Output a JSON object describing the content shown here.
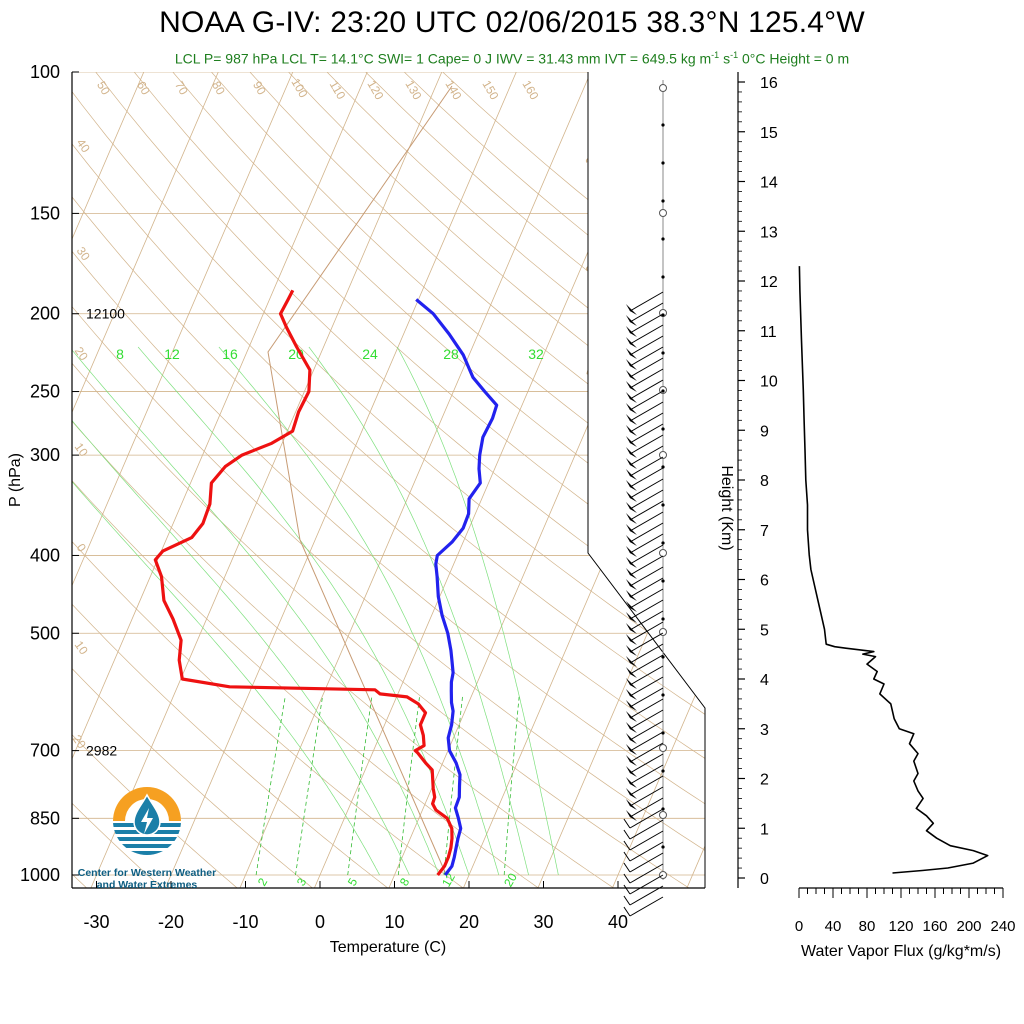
{
  "header": {
    "title": "NOAA G-IV: 23:20 UTC 02/06/2015  38.3°N 125.4°W",
    "subtitle_parts": [
      "LCL P= 987 hPa  LCL T= 14.1°C  SWI= 1  Cape= 0 J  IWV = 31.43 mm  IVT = 649.5 kg m",
      "-1",
      " s",
      "-1",
      "  0°C Height = 0 m"
    ]
  },
  "logo": {
    "line1": "Center for Western Weather",
    "line2": "and Water Extremes",
    "colors": {
      "orange": "#f6a021",
      "blue": "#1b7fa8",
      "dark_blue": "#0e5e82"
    }
  },
  "chart_data": [
    {
      "type": "line",
      "subtype": "skew-T log-P sounding",
      "xlabel": "Temperature (C)",
      "ylabel": "P (hPa)",
      "x_ticks": [
        -30,
        -20,
        -10,
        0,
        10,
        20,
        30,
        40
      ],
      "y_ticks": [
        100,
        150,
        200,
        250,
        300,
        400,
        500,
        700,
        850,
        1000
      ],
      "y_scale": "log",
      "height_annotations": [
        {
          "p": 200,
          "label": "12100"
        },
        {
          "p": 700,
          "label": "2982"
        }
      ],
      "dry_adiabat_labels": [
        "50",
        "60",
        "70",
        "80",
        "90",
        "100",
        "110",
        "120",
        "130",
        "140",
        "150",
        "160",
        "40",
        "30",
        "20",
        "10",
        "0",
        "10",
        "20",
        "30"
      ],
      "mixing_ratio_labels_top": [
        "8",
        "12",
        "16",
        "20",
        "24",
        "28",
        "32"
      ],
      "mixing_ratio_labels_bottom": [
        "2",
        "3",
        "5",
        "8",
        "12",
        "20"
      ],
      "skew_isotherm_labels": [
        "30",
        "20",
        "10",
        "0",
        "10",
        "20",
        "30"
      ],
      "series": [
        {
          "name": "temperature",
          "color": "#2222ee",
          "points": [
            [
              1000,
              16.8
            ],
            [
              975,
              17.2
            ],
            [
              950,
              17.0
            ],
            [
              925,
              16.7
            ],
            [
              900,
              16.4
            ],
            [
              875,
              16.2
            ],
            [
              850,
              15.3
            ],
            [
              825,
              14.3
            ],
            [
              800,
              14.2
            ],
            [
              775,
              13.6
            ],
            [
              750,
              13.0
            ],
            [
              725,
              11.8
            ],
            [
              700,
              10.2
            ],
            [
              675,
              9.3
            ],
            [
              650,
              9.0
            ],
            [
              625,
              8.4
            ],
            [
              610,
              7.7
            ],
            [
              590,
              7.0
            ],
            [
              575,
              6.5
            ],
            [
              560,
              6.2
            ],
            [
              540,
              5.3
            ],
            [
              525,
              4.6
            ],
            [
              500,
              3.2
            ],
            [
              475,
              1.4
            ],
            [
              450,
              -0.2
            ],
            [
              425,
              -1.5
            ],
            [
              410,
              -2.4
            ],
            [
              400,
              -2.7
            ],
            [
              385,
              -1.5
            ],
            [
              370,
              -0.8
            ],
            [
              355,
              -0.9
            ],
            [
              340,
              -1.7
            ],
            [
              325,
              -1.1
            ],
            [
              312,
              -2.1
            ],
            [
              300,
              -2.8
            ],
            [
              285,
              -3.4
            ],
            [
              270,
              -3.2
            ],
            [
              260,
              -3.4
            ],
            [
              250,
              -5.8
            ],
            [
              240,
              -8.2
            ],
            [
              225,
              -10.8
            ],
            [
              212,
              -13.9
            ],
            [
              200,
              -17.2
            ],
            [
              192,
              -20.3
            ]
          ]
        },
        {
          "name": "dewpoint",
          "color": "#ee1111",
          "points": [
            [
              1000,
              15.8
            ],
            [
              975,
              16.2
            ],
            [
              950,
              16.2
            ],
            [
              925,
              16.0
            ],
            [
              900,
              15.6
            ],
            [
              875,
              15.0
            ],
            [
              850,
              13.8
            ],
            [
              830,
              11.8
            ],
            [
              815,
              11.0
            ],
            [
              800,
              10.9
            ],
            [
              780,
              10.2
            ],
            [
              760,
              9.6
            ],
            [
              740,
              9.0
            ],
            [
              725,
              7.7
            ],
            [
              705,
              6.1
            ],
            [
              700,
              5.6
            ],
            [
              690,
              6.5
            ],
            [
              670,
              5.8
            ],
            [
              650,
              4.8
            ],
            [
              628,
              4.8
            ],
            [
              612,
              3.3
            ],
            [
              600,
              1.4
            ],
            [
              595,
              -2.4
            ],
            [
              588,
              -3.3
            ],
            [
              583,
              -23.0
            ],
            [
              570,
              -29.8
            ],
            [
              540,
              -31.3
            ],
            [
              510,
              -32.2
            ],
            [
              480,
              -34.5
            ],
            [
              455,
              -36.8
            ],
            [
              425,
              -38.5
            ],
            [
              405,
              -40.3
            ],
            [
              395,
              -39.8
            ],
            [
              380,
              -36.7
            ],
            [
              365,
              -36.0
            ],
            [
              345,
              -36.2
            ],
            [
              325,
              -37.2
            ],
            [
              310,
              -36.3
            ],
            [
              300,
              -34.7
            ],
            [
              290,
              -31.4
            ],
            [
              280,
              -29.3
            ],
            [
              265,
              -29.6
            ],
            [
              250,
              -29.4
            ],
            [
              235,
              -30.5
            ],
            [
              220,
              -33.6
            ],
            [
              208,
              -36.1
            ],
            [
              200,
              -37.7
            ],
            [
              192,
              -37.5
            ],
            [
              187,
              -37.4
            ]
          ]
        }
      ],
      "wind_profile_note": "wind barbs at right margin of skew-T"
    },
    {
      "type": "line",
      "xlabel": "Water Vapor Flux (g/kg*m/s)",
      "ylabel": "Height (Km)",
      "x_ticks": [
        0,
        40,
        80,
        120,
        160,
        200,
        240
      ],
      "y_ticks": [
        0,
        1,
        2,
        3,
        4,
        5,
        6,
        7,
        8,
        9,
        10,
        11,
        12,
        13,
        14,
        15,
        16
      ],
      "xlim": [
        0,
        240
      ],
      "ylim": [
        -0.2,
        16.2
      ],
      "series": [
        {
          "color": "#000000",
          "points": [
            [
              110,
              0.1
            ],
            [
              145,
              0.15
            ],
            [
              175,
              0.2
            ],
            [
              205,
              0.3
            ],
            [
              222,
              0.45
            ],
            [
              205,
              0.55
            ],
            [
              178,
              0.65
            ],
            [
              162,
              0.8
            ],
            [
              150,
              0.95
            ],
            [
              158,
              1.1
            ],
            [
              150,
              1.25
            ],
            [
              138,
              1.4
            ],
            [
              146,
              1.6
            ],
            [
              140,
              1.75
            ],
            [
              135,
              1.95
            ],
            [
              140,
              2.1
            ],
            [
              135,
              2.35
            ],
            [
              140,
              2.5
            ],
            [
              130,
              2.7
            ],
            [
              135,
              2.9
            ],
            [
              118,
              3.0
            ],
            [
              112,
              3.2
            ],
            [
              108,
              3.5
            ],
            [
              95,
              3.7
            ],
            [
              100,
              3.9
            ],
            [
              88,
              4.0
            ],
            [
              92,
              4.15
            ],
            [
              80,
              4.3
            ],
            [
              90,
              4.45
            ],
            [
              75,
              4.5
            ],
            [
              88,
              4.55
            ],
            [
              55,
              4.62
            ],
            [
              42,
              4.65
            ],
            [
              32,
              4.7
            ],
            [
              30,
              5.0
            ],
            [
              26,
              5.3
            ],
            [
              22,
              5.6
            ],
            [
              18,
              5.9
            ],
            [
              14,
              6.2
            ],
            [
              12,
              6.5
            ],
            [
              10,
              7.0
            ],
            [
              10,
              7.5
            ],
            [
              8,
              8.0
            ],
            [
              7,
              8.6
            ],
            [
              6,
              9.2
            ],
            [
              5,
              9.8
            ],
            [
              4,
              10.3
            ],
            [
              3,
              10.8
            ],
            [
              2,
              11.3
            ],
            [
              1,
              11.8
            ],
            [
              0.5,
              12.3
            ]
          ]
        }
      ]
    }
  ]
}
